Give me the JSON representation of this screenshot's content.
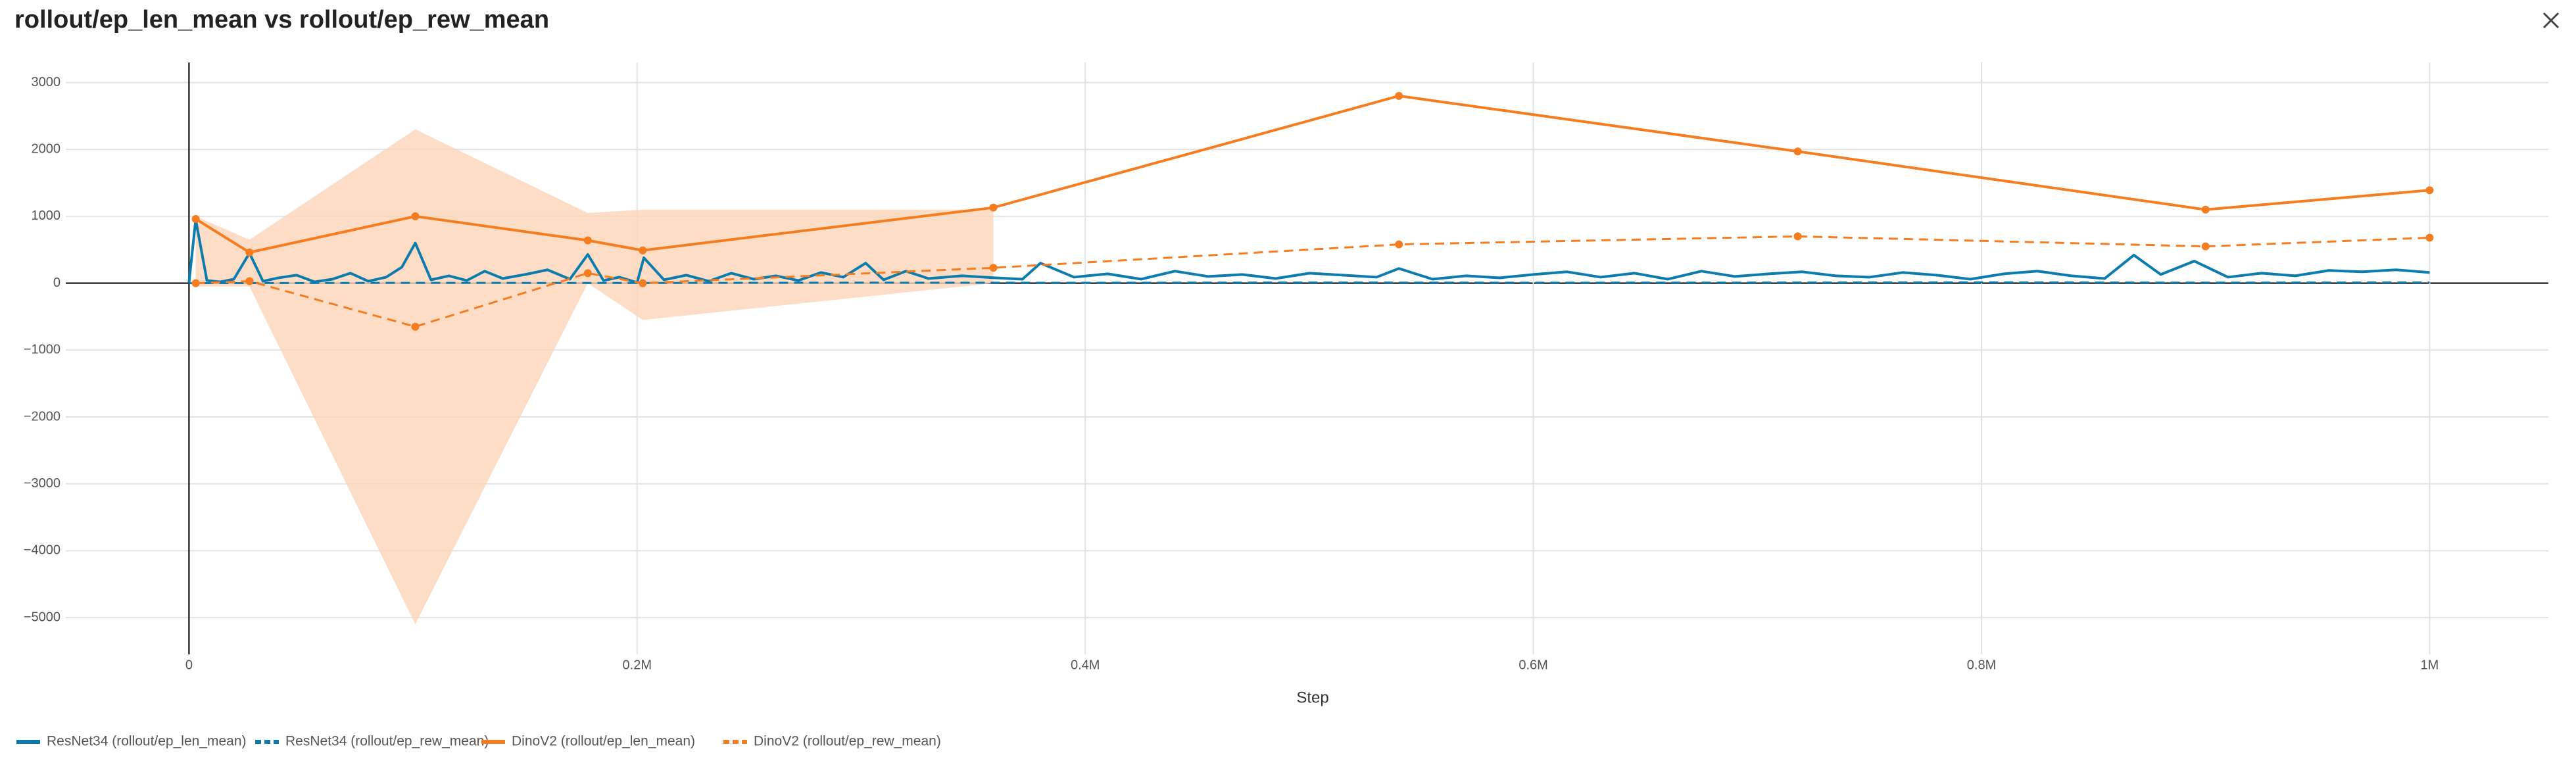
{
  "chart_data": {
    "type": "line",
    "title": "rollout/ep_len_mean vs rollout/ep_rew_mean",
    "xlabel": "Step",
    "xlim": [
      -55000,
      1053000
    ],
    "ylim": [
      -5550,
      3300
    ],
    "xticks": [
      0,
      {
        "value": 200000,
        "label": "0.2M"
      },
      {
        "value": 400000,
        "label": "0.4M"
      },
      {
        "value": 600000,
        "label": "0.6M"
      },
      {
        "value": 800000,
        "label": "0.8M"
      },
      {
        "value": 1000000,
        "label": "1M"
      }
    ],
    "yticks": [
      3000,
      2000,
      1000,
      0,
      {
        "value": -1000,
        "label": "−1000"
      },
      {
        "value": -2000,
        "label": "−2000"
      },
      {
        "value": -3000,
        "label": "−3000"
      },
      {
        "value": -4000,
        "label": "−4000"
      },
      {
        "value": -5000,
        "label": "−5000"
      }
    ],
    "grid": true,
    "legend": "bottom-left",
    "series": [
      {
        "name": "ResNet34 (rollout/ep_len_mean)",
        "color": "#0c7bad",
        "dash": false,
        "markers": false,
        "x": [
          0,
          3000,
          8000,
          14000,
          20000,
          27000,
          33000,
          40000,
          48000,
          56000,
          64000,
          72000,
          80000,
          88000,
          95000,
          101000,
          108000,
          116000,
          124000,
          132000,
          140000,
          150000,
          160000,
          170000,
          178000,
          185000,
          192000,
          200000,
          203000,
          212000,
          222000,
          232000,
          242000,
          252000,
          262000,
          272000,
          282000,
          292000,
          302000,
          310000,
          320000,
          330000,
          345000,
          360000,
          372000,
          380000,
          395000,
          410000,
          425000,
          440000,
          455000,
          470000,
          485000,
          500000,
          515000,
          530000,
          540000,
          555000,
          570000,
          585000,
          600000,
          615000,
          630000,
          645000,
          660000,
          675000,
          690000,
          705000,
          720000,
          735000,
          750000,
          765000,
          780000,
          795000,
          810000,
          825000,
          840000,
          855000,
          868000,
          880000,
          895000,
          910000,
          925000,
          940000,
          955000,
          970000,
          985000,
          1000000
        ],
        "values": [
          10,
          950,
          40,
          20,
          60,
          450,
          30,
          80,
          120,
          20,
          60,
          150,
          30,
          90,
          240,
          600,
          50,
          110,
          40,
          180,
          70,
          130,
          200,
          60,
          430,
          40,
          90,
          10,
          380,
          50,
          120,
          30,
          150,
          60,
          110,
          40,
          160,
          90,
          300,
          50,
          180,
          70,
          110,
          80,
          60,
          300,
          90,
          140,
          60,
          180,
          100,
          130,
          70,
          150,
          120,
          90,
          220,
          60,
          110,
          80,
          130,
          170,
          90,
          150,
          60,
          180,
          100,
          140,
          170,
          110,
          90,
          160,
          120,
          60,
          140,
          180,
          110,
          70,
          420,
          130,
          330,
          90,
          150,
          110,
          190,
          170,
          200,
          160
        ]
      },
      {
        "name": "ResNet34 (rollout/ep_rew_mean)",
        "color": "#0c7bad",
        "dash": true,
        "markers": false,
        "x": [
          0,
          100000,
          200000,
          300000,
          400000,
          500000,
          600000,
          700000,
          800000,
          900000,
          1000000
        ],
        "values": [
          0,
          5,
          3,
          8,
          6,
          10,
          7,
          9,
          12,
          8,
          11
        ]
      },
      {
        "name": "DinoV2 (rollout/ep_len_mean)",
        "color": "#f57c1f",
        "dash": false,
        "markers": true,
        "x": [
          3000,
          27000,
          101000,
          178000,
          202500,
          359000,
          540000,
          718000,
          900000,
          1000000
        ],
        "values": [
          960,
          460,
          1000,
          640,
          490,
          1130,
          2800,
          1970,
          1100,
          1390
        ]
      },
      {
        "name": "DinoV2 (rollout/ep_rew_mean)",
        "color": "#f57c1f",
        "dash": true,
        "markers": true,
        "x": [
          3000,
          27000,
          101000,
          178000,
          202500,
          359000,
          540000,
          718000,
          900000,
          1000000
        ],
        "values": [
          0,
          30,
          -650,
          150,
          0,
          230,
          580,
          700,
          550,
          680
        ],
        "band": {
          "color": "#fdd5b8",
          "x": [
            3000,
            27000,
            101000,
            178000,
            202500,
            359000
          ],
          "upper": [
            1000,
            650,
            2300,
            1050,
            1100,
            1100
          ],
          "lower": [
            -50,
            -50,
            -5100,
            0,
            -550,
            0
          ]
        }
      }
    ]
  }
}
